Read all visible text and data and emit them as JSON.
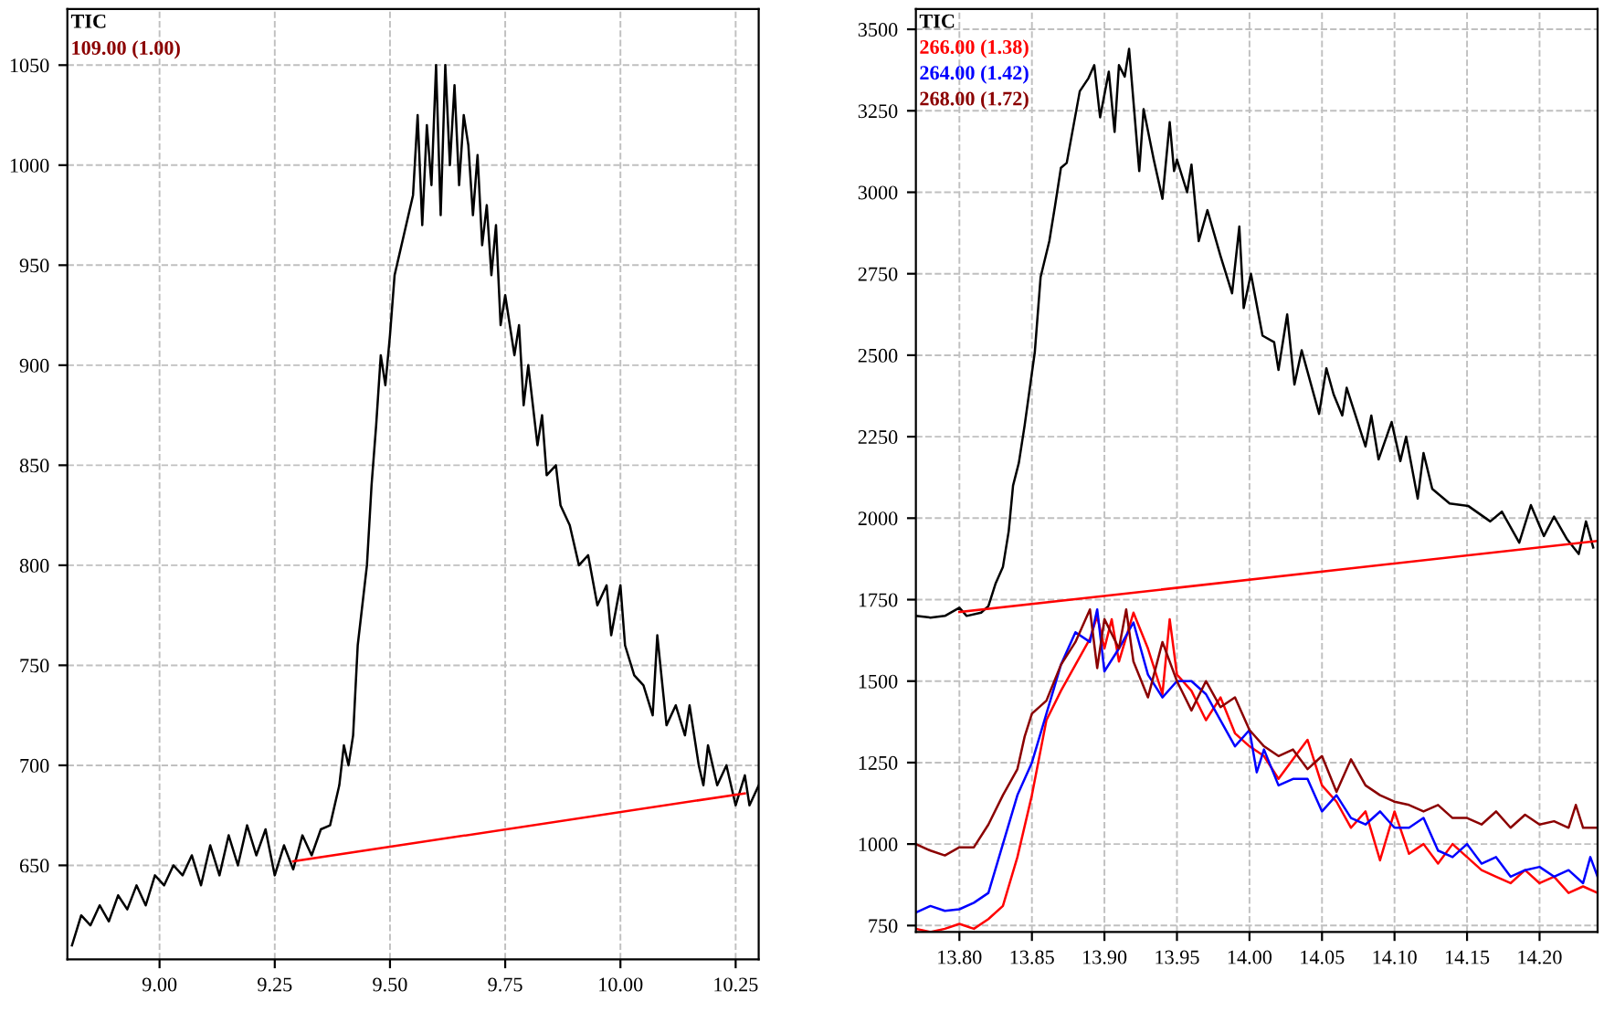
{
  "chart_data": [
    {
      "type": "line",
      "xlim": [
        8.8,
        10.3
      ],
      "ylim": [
        603,
        1078
      ],
      "xticks": [
        {
          "value": 9.0,
          "label": "9.00"
        },
        {
          "value": 9.25,
          "label": "9.25"
        },
        {
          "value": 9.5,
          "label": "9.50"
        },
        {
          "value": 9.75,
          "label": "9.75"
        },
        {
          "value": 10.0,
          "label": "10.00"
        },
        {
          "value": 10.25,
          "label": "10.25"
        }
      ],
      "yticks": [
        650,
        700,
        750,
        800,
        850,
        900,
        950,
        1000,
        1050
      ],
      "grid": true,
      "legend": "top left",
      "annotations": [
        "109.00 (1.00)"
      ],
      "series": [
        {
          "name": "TIC",
          "color": "#000000",
          "x": [
            8.81,
            8.83,
            8.85,
            8.87,
            8.89,
            8.91,
            8.93,
            8.95,
            8.97,
            8.99,
            9.01,
            9.03,
            9.05,
            9.07,
            9.09,
            9.11,
            9.13,
            9.15,
            9.17,
            9.19,
            9.21,
            9.23,
            9.25,
            9.27,
            9.29,
            9.31,
            9.33,
            9.35,
            9.37,
            9.39,
            9.4,
            9.41,
            9.42,
            9.43,
            9.45,
            9.46,
            9.47,
            9.48,
            9.49,
            9.5,
            9.51,
            9.52,
            9.53,
            9.55,
            9.56,
            9.57,
            9.58,
            9.59,
            9.6,
            9.61,
            9.62,
            9.63,
            9.64,
            9.65,
            9.66,
            9.67,
            9.68,
            9.69,
            9.7,
            9.71,
            9.72,
            9.73,
            9.74,
            9.75,
            9.77,
            9.78,
            9.79,
            9.8,
            9.82,
            9.83,
            9.84,
            9.86,
            9.87,
            9.89,
            9.91,
            9.93,
            9.95,
            9.97,
            9.98,
            10.0,
            10.01,
            10.03,
            10.05,
            10.07,
            10.08,
            10.1,
            10.12,
            10.14,
            10.15,
            10.17,
            10.18,
            10.19,
            10.21,
            10.23,
            10.25,
            10.27,
            10.28,
            10.3
          ],
          "values": [
            610,
            625,
            620,
            630,
            622,
            635,
            628,
            640,
            630,
            645,
            640,
            650,
            645,
            655,
            640,
            660,
            645,
            665,
            650,
            670,
            655,
            668,
            645,
            660,
            648,
            665,
            655,
            668,
            670,
            690,
            710,
            700,
            715,
            760,
            800,
            840,
            870,
            905,
            890,
            915,
            945,
            955,
            965,
            985,
            1025,
            970,
            1020,
            990,
            1050,
            975,
            1050,
            1000,
            1040,
            990,
            1025,
            1010,
            975,
            1005,
            960,
            980,
            945,
            970,
            920,
            935,
            905,
            920,
            880,
            900,
            860,
            875,
            845,
            850,
            830,
            820,
            800,
            805,
            780,
            790,
            765,
            790,
            760,
            745,
            740,
            725,
            765,
            720,
            730,
            715,
            730,
            700,
            690,
            710,
            690,
            700,
            680,
            695,
            680,
            690
          ]
        },
        {
          "color": "#ff0000",
          "x": [
            9.29,
            10.27
          ],
          "values": [
            652,
            686
          ]
        }
      ]
    },
    {
      "type": "line",
      "xlim": [
        13.77,
        14.24
      ],
      "ylim": [
        730,
        3562
      ],
      "xticks": [
        {
          "value": 13.8,
          "label": "13.80"
        },
        {
          "value": 13.85,
          "label": "13.85"
        },
        {
          "value": 13.9,
          "label": "13.90"
        },
        {
          "value": 13.95,
          "label": "13.95"
        },
        {
          "value": 14.0,
          "label": "14.00"
        },
        {
          "value": 14.05,
          "label": "14.05"
        },
        {
          "value": 14.1,
          "label": "14.10"
        },
        {
          "value": 14.15,
          "label": "14.15"
        },
        {
          "value": 14.2,
          "label": "14.20"
        }
      ],
      "yticks": [
        750,
        1000,
        1250,
        1500,
        1750,
        2000,
        2250,
        2500,
        2750,
        3000,
        3250,
        3500
      ],
      "grid": true,
      "legend": "top left",
      "series": [
        {
          "name": "TIC",
          "color": "#000000",
          "x": [
            13.77,
            13.78,
            13.79,
            13.8,
            13.805,
            13.815,
            13.82,
            13.825,
            13.83,
            13.834,
            13.837,
            13.841,
            13.845,
            13.852,
            13.856,
            13.862,
            13.866,
            13.87,
            13.874,
            13.883,
            13.889,
            13.893,
            13.897,
            13.903,
            13.907,
            13.91,
            13.914,
            13.917,
            13.924,
            13.927,
            13.934,
            13.94,
            13.945,
            13.948,
            13.95,
            13.957,
            13.96,
            13.965,
            13.971,
            13.98,
            13.988,
            13.993,
            13.996,
            14.001,
            14.009,
            14.017,
            14.02,
            14.026,
            14.031,
            14.036,
            14.048,
            14.053,
            14.058,
            14.064,
            14.067,
            14.08,
            14.084,
            14.089,
            14.098,
            14.104,
            14.108,
            14.116,
            14.12,
            14.126,
            14.138,
            14.151,
            14.166,
            14.174,
            14.186,
            14.194,
            14.203,
            14.21,
            14.219,
            14.227,
            14.232,
            14.237
          ],
          "values": [
            1700,
            1695,
            1700,
            1725,
            1700,
            1710,
            1730,
            1800,
            1850,
            1960,
            2100,
            2170,
            2285,
            2510,
            2740,
            2850,
            2960,
            3075,
            3090,
            3310,
            3350,
            3390,
            3230,
            3370,
            3185,
            3390,
            3355,
            3440,
            3065,
            3255,
            3100,
            2980,
            3215,
            3065,
            3100,
            3000,
            3085,
            2850,
            2945,
            2805,
            2690,
            2895,
            2645,
            2750,
            2560,
            2540,
            2455,
            2625,
            2410,
            2515,
            2320,
            2460,
            2380,
            2315,
            2400,
            2220,
            2315,
            2180,
            2295,
            2175,
            2250,
            2060,
            2200,
            2090,
            2045,
            2037,
            1990,
            2020,
            1925,
            2040,
            1945,
            2005,
            1935,
            1890,
            1990,
            1910
          ]
        },
        {
          "name": "266.00 (1.38)",
          "color": "#ff0000",
          "x": [
            13.77,
            13.78,
            13.79,
            13.8,
            13.81,
            13.82,
            13.83,
            13.84,
            13.85,
            13.86,
            13.87,
            13.88,
            13.89,
            13.895,
            13.9,
            13.905,
            13.91,
            13.92,
            13.93,
            13.94,
            13.945,
            13.95,
            13.96,
            13.97,
            13.98,
            13.99,
            14.0,
            14.01,
            14.02,
            14.03,
            14.04,
            14.05,
            14.06,
            14.07,
            14.08,
            14.09,
            14.1,
            14.11,
            14.12,
            14.13,
            14.14,
            14.15,
            14.16,
            14.17,
            14.18,
            14.19,
            14.2,
            14.21,
            14.22,
            14.23,
            14.24
          ],
          "values": [
            740,
            730,
            740,
            755,
            740,
            770,
            810,
            960,
            1150,
            1380,
            1470,
            1550,
            1630,
            1700,
            1600,
            1690,
            1560,
            1710,
            1600,
            1460,
            1690,
            1520,
            1470,
            1380,
            1450,
            1340,
            1300,
            1270,
            1200,
            1260,
            1320,
            1180,
            1130,
            1050,
            1100,
            950,
            1100,
            970,
            1000,
            940,
            1000,
            960,
            920,
            900,
            880,
            920,
            880,
            900,
            850,
            870,
            850
          ]
        },
        {
          "name": "264.00 (1.42)",
          "color": "#0000ff",
          "x": [
            13.77,
            13.78,
            13.79,
            13.8,
            13.81,
            13.82,
            13.83,
            13.84,
            13.85,
            13.86,
            13.87,
            13.88,
            13.89,
            13.895,
            13.9,
            13.91,
            13.92,
            13.93,
            13.94,
            13.95,
            13.96,
            13.97,
            13.98,
            13.99,
            14.0,
            14.005,
            14.01,
            14.02,
            14.03,
            14.04,
            14.05,
            14.06,
            14.07,
            14.08,
            14.09,
            14.1,
            14.11,
            14.12,
            14.13,
            14.14,
            14.15,
            14.16,
            14.17,
            14.18,
            14.19,
            14.2,
            14.21,
            14.22,
            14.23,
            14.235,
            14.24
          ],
          "values": [
            790,
            810,
            795,
            800,
            820,
            850,
            1000,
            1150,
            1250,
            1400,
            1550,
            1650,
            1620,
            1720,
            1530,
            1600,
            1680,
            1520,
            1450,
            1500,
            1500,
            1460,
            1380,
            1300,
            1350,
            1220,
            1290,
            1180,
            1200,
            1200,
            1100,
            1150,
            1080,
            1060,
            1100,
            1050,
            1050,
            1080,
            980,
            960,
            1000,
            940,
            960,
            900,
            920,
            930,
            900,
            920,
            880,
            960,
            900
          ]
        },
        {
          "name": "268.00 (1.72)",
          "color": "#8b0000",
          "x": [
            13.77,
            13.78,
            13.79,
            13.8,
            13.81,
            13.82,
            13.83,
            13.84,
            13.845,
            13.85,
            13.86,
            13.87,
            13.88,
            13.89,
            13.895,
            13.9,
            13.91,
            13.915,
            13.92,
            13.93,
            13.94,
            13.95,
            13.96,
            13.97,
            13.98,
            13.99,
            14.0,
            14.01,
            14.02,
            14.03,
            14.04,
            14.05,
            14.06,
            14.07,
            14.08,
            14.09,
            14.1,
            14.11,
            14.12,
            14.13,
            14.14,
            14.15,
            14.16,
            14.17,
            14.18,
            14.19,
            14.2,
            14.21,
            14.22,
            14.225,
            14.23,
            14.24
          ],
          "values": [
            1000,
            980,
            965,
            990,
            990,
            1060,
            1150,
            1230,
            1330,
            1400,
            1440,
            1550,
            1620,
            1720,
            1540,
            1690,
            1600,
            1720,
            1560,
            1450,
            1620,
            1500,
            1410,
            1500,
            1420,
            1450,
            1350,
            1300,
            1270,
            1290,
            1230,
            1270,
            1160,
            1260,
            1180,
            1150,
            1130,
            1120,
            1100,
            1120,
            1080,
            1080,
            1060,
            1100,
            1050,
            1090,
            1060,
            1070,
            1050,
            1120,
            1050,
            1050
          ]
        },
        {
          "color": "#ff0000",
          "x": [
            13.8,
            14.24
          ],
          "values": [
            1712,
            1930
          ]
        }
      ]
    }
  ]
}
